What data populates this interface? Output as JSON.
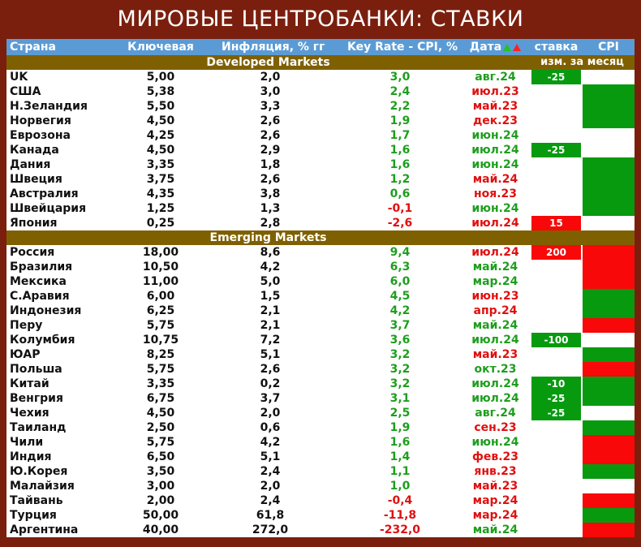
{
  "title": "МИРОВЫЕ ЦЕНТРОБАНКИ: СТАВКИ",
  "header": {
    "country": "Страна",
    "key": "Ключевая",
    "inflation": "Инфляция, % гг",
    "real": "Key Rate - CPI, %",
    "date": "Дата",
    "rate_change": "ставка",
    "cpi": "CPI"
  },
  "sections": {
    "developed": "Developed Markets",
    "emerging": "Emerging Markets",
    "sub": "изм. за месяц"
  },
  "colors": {
    "positive": "#1e9e1e",
    "negative": "#e01010",
    "cell_green": "#079a0f",
    "cell_red": "#f80808",
    "header_bg": "#5b9bd5",
    "section_bg": "#7f6000",
    "frame": "#7a1f0e"
  },
  "chart_data": {
    "type": "table",
    "title": "МИРОВЫЕ ЦЕНТРОБАНКИ: СТАВКИ",
    "columns": [
      "Страна",
      "Ключевая",
      "Инфляция, % гг",
      "Key Rate - CPI, %",
      "Дата",
      "ставка",
      "CPI"
    ],
    "developed": [
      {
        "country": "UK",
        "key": "5,00",
        "inflation": "2,0",
        "real": "3,0",
        "date": "авг.24",
        "date_dir": "down",
        "change": "-25",
        "change_dir": "down",
        "cpi": "none"
      },
      {
        "country": "США",
        "key": "5,38",
        "inflation": "3,0",
        "real": "2,4",
        "date": "июл.23",
        "date_dir": "up",
        "change": "",
        "change_dir": "",
        "cpi": "down"
      },
      {
        "country": "Н.Зеландия",
        "key": "5,50",
        "inflation": "3,3",
        "real": "2,2",
        "date": "май.23",
        "date_dir": "up",
        "change": "",
        "change_dir": "",
        "cpi": "down"
      },
      {
        "country": "Норвегия",
        "key": "4,50",
        "inflation": "2,6",
        "real": "1,9",
        "date": "дек.23",
        "date_dir": "up",
        "change": "",
        "change_dir": "",
        "cpi": "down"
      },
      {
        "country": "Еврозона",
        "key": "4,25",
        "inflation": "2,6",
        "real": "1,7",
        "date": "июн.24",
        "date_dir": "down",
        "change": "",
        "change_dir": "",
        "cpi": "none"
      },
      {
        "country": "Канада",
        "key": "4,50",
        "inflation": "2,9",
        "real": "1,6",
        "date": "июл.24",
        "date_dir": "down",
        "change": "-25",
        "change_dir": "down",
        "cpi": "none"
      },
      {
        "country": "Дания",
        "key": "3,35",
        "inflation": "1,8",
        "real": "1,6",
        "date": "июн.24",
        "date_dir": "down",
        "change": "",
        "change_dir": "",
        "cpi": "down"
      },
      {
        "country": "Швеция",
        "key": "3,75",
        "inflation": "2,6",
        "real": "1,2",
        "date": "май.24",
        "date_dir": "up",
        "change": "",
        "change_dir": "",
        "cpi": "down"
      },
      {
        "country": "Австралия",
        "key": "4,35",
        "inflation": "3,8",
        "real": "0,6",
        "date": "ноя.23",
        "date_dir": "up",
        "change": "",
        "change_dir": "",
        "cpi": "down"
      },
      {
        "country": "Швейцария",
        "key": "1,25",
        "inflation": "1,3",
        "real": "-0,1",
        "date": "июн.24",
        "date_dir": "down",
        "change": "",
        "change_dir": "",
        "cpi": "down"
      },
      {
        "country": "Япония",
        "key": "0,25",
        "inflation": "2,8",
        "real": "-2,6",
        "date": "июл.24",
        "date_dir": "up",
        "change": "15",
        "change_dir": "up",
        "cpi": "none"
      }
    ],
    "emerging": [
      {
        "country": "Россия",
        "key": "18,00",
        "inflation": "8,6",
        "real": "9,4",
        "date": "июл.24",
        "date_dir": "up",
        "change": "200",
        "change_dir": "up",
        "cpi": "up"
      },
      {
        "country": "Бразилия",
        "key": "10,50",
        "inflation": "4,2",
        "real": "6,3",
        "date": "май.24",
        "date_dir": "down",
        "change": "",
        "change_dir": "",
        "cpi": "up"
      },
      {
        "country": "Мексика",
        "key": "11,00",
        "inflation": "5,0",
        "real": "6,0",
        "date": "мар.24",
        "date_dir": "down",
        "change": "",
        "change_dir": "",
        "cpi": "up"
      },
      {
        "country": "С.Аравия",
        "key": "6,00",
        "inflation": "1,5",
        "real": "4,5",
        "date": "июн.23",
        "date_dir": "up",
        "change": "",
        "change_dir": "",
        "cpi": "down"
      },
      {
        "country": "Индонезия",
        "key": "6,25",
        "inflation": "2,1",
        "real": "4,2",
        "date": "апр.24",
        "date_dir": "up",
        "change": "",
        "change_dir": "",
        "cpi": "down"
      },
      {
        "country": "Перу",
        "key": "5,75",
        "inflation": "2,1",
        "real": "3,7",
        "date": "май.24",
        "date_dir": "down",
        "change": "",
        "change_dir": "",
        "cpi": "up"
      },
      {
        "country": "Колумбия",
        "key": "10,75",
        "inflation": "7,2",
        "real": "3,6",
        "date": "июл.24",
        "date_dir": "down",
        "change": "-100",
        "change_dir": "down",
        "cpi": "none"
      },
      {
        "country": "ЮАР",
        "key": "8,25",
        "inflation": "5,1",
        "real": "3,2",
        "date": "май.23",
        "date_dir": "up",
        "change": "",
        "change_dir": "",
        "cpi": "down"
      },
      {
        "country": "Польша",
        "key": "5,75",
        "inflation": "2,6",
        "real": "3,2",
        "date": "окт.23",
        "date_dir": "down",
        "change": "",
        "change_dir": "",
        "cpi": "up"
      },
      {
        "country": "Китай",
        "key": "3,35",
        "inflation": "0,2",
        "real": "3,2",
        "date": "июл.24",
        "date_dir": "down",
        "change": "-10",
        "change_dir": "down",
        "cpi": "down"
      },
      {
        "country": "Венгрия",
        "key": "6,75",
        "inflation": "3,7",
        "real": "3,1",
        "date": "июл.24",
        "date_dir": "down",
        "change": "-25",
        "change_dir": "down",
        "cpi": "down"
      },
      {
        "country": "Чехия",
        "key": "4,50",
        "inflation": "2,0",
        "real": "2,5",
        "date": "авг.24",
        "date_dir": "down",
        "change": "-25",
        "change_dir": "down",
        "cpi": "none"
      },
      {
        "country": "Таиланд",
        "key": "2,50",
        "inflation": "0,6",
        "real": "1,9",
        "date": "сен.23",
        "date_dir": "up",
        "change": "",
        "change_dir": "",
        "cpi": "down"
      },
      {
        "country": "Чили",
        "key": "5,75",
        "inflation": "4,2",
        "real": "1,6",
        "date": "июн.24",
        "date_dir": "down",
        "change": "",
        "change_dir": "",
        "cpi": "up"
      },
      {
        "country": "Индия",
        "key": "6,50",
        "inflation": "5,1",
        "real": "1,4",
        "date": "фев.23",
        "date_dir": "up",
        "change": "",
        "change_dir": "",
        "cpi": "up"
      },
      {
        "country": "Ю.Корея",
        "key": "3,50",
        "inflation": "2,4",
        "real": "1,1",
        "date": "янв.23",
        "date_dir": "up",
        "change": "",
        "change_dir": "",
        "cpi": "down"
      },
      {
        "country": "Малайзия",
        "key": "3,00",
        "inflation": "2,0",
        "real": "1,0",
        "date": "май.23",
        "date_dir": "up",
        "change": "",
        "change_dir": "",
        "cpi": "none"
      },
      {
        "country": "Тайвань",
        "key": "2,00",
        "inflation": "2,4",
        "real": "-0,4",
        "date": "мар.24",
        "date_dir": "up",
        "change": "",
        "change_dir": "",
        "cpi": "up"
      },
      {
        "country": "Турция",
        "key": "50,00",
        "inflation": "61,8",
        "real": "-11,8",
        "date": "мар.24",
        "date_dir": "up",
        "change": "",
        "change_dir": "",
        "cpi": "down"
      },
      {
        "country": "Аргентина",
        "key": "40,00",
        "inflation": "272,0",
        "real": "-232,0",
        "date": "май.24",
        "date_dir": "down",
        "change": "",
        "change_dir": "",
        "cpi": "up"
      }
    ]
  }
}
